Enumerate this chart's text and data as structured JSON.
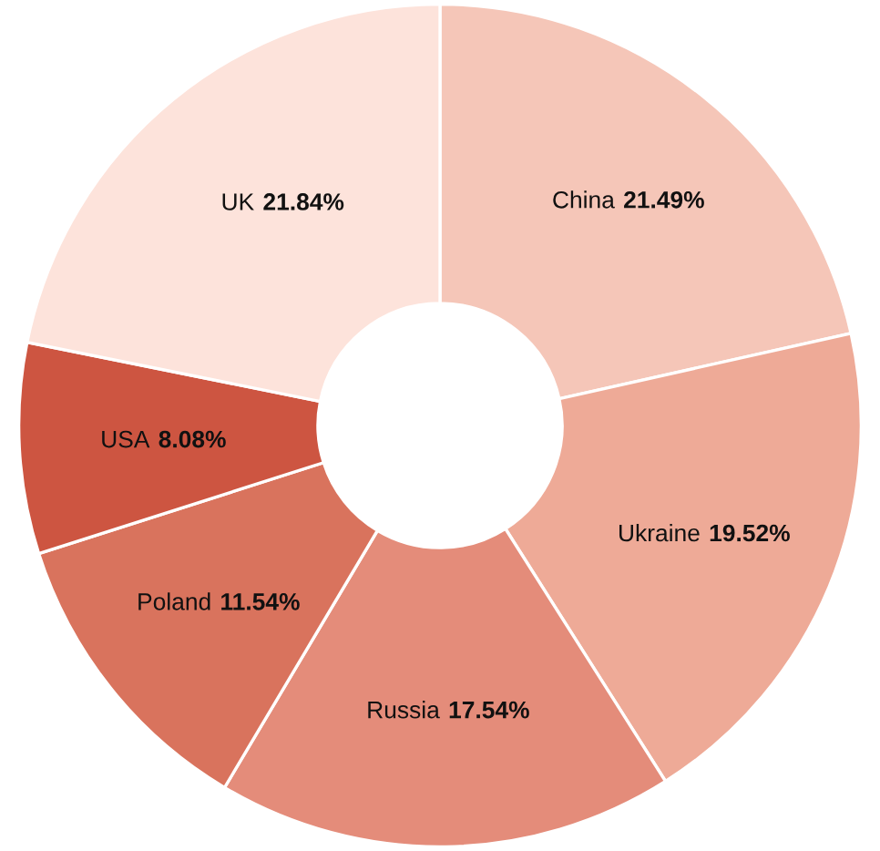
{
  "chart_data": {
    "type": "donut",
    "categories": [
      "China",
      "Ukraine",
      "Russia",
      "Poland",
      "USA",
      "UK"
    ],
    "values": [
      21.49,
      19.52,
      17.54,
      11.54,
      8.08,
      21.84
    ],
    "value_labels": [
      "21.49%",
      "19.52%",
      "17.54%",
      "11.54%",
      "8.08%",
      "21.84%"
    ],
    "colors": [
      "#f5c6b8",
      "#eeaa97",
      "#e48c7a",
      "#d9735d",
      "#cd5541",
      "#fde3db"
    ],
    "legend": false
  }
}
